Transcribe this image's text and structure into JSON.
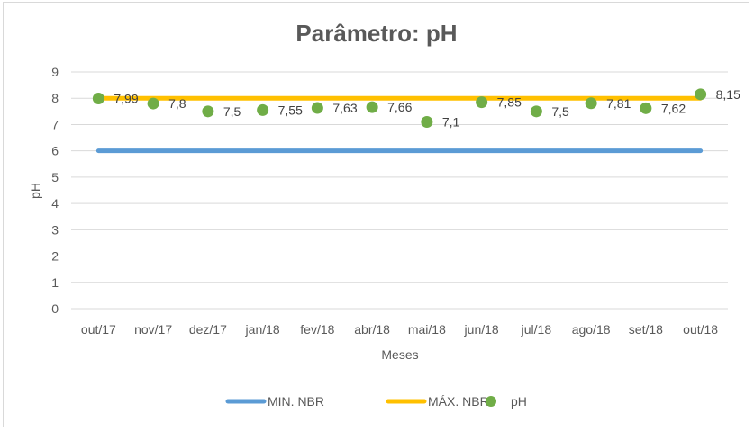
{
  "chart_data": {
    "type": "line",
    "title": "Parâmetro: pH",
    "xlabel": "Meses",
    "ylabel": "pH",
    "ylim": [
      0,
      9
    ],
    "yticks": [
      "0",
      "1",
      "2",
      "3",
      "4",
      "5",
      "6",
      "7",
      "8",
      "9"
    ],
    "categories": [
      "out/17",
      "nov/17",
      "dez/17",
      "jan/18",
      "fev/18",
      "abr/18",
      "mai/18",
      "jun/18",
      "jul/18",
      "ago/18",
      "set/18",
      "out/18"
    ],
    "series": [
      {
        "name": "MIN. NBR",
        "kind": "line",
        "color": "#5b9bd5",
        "values": [
          6,
          6,
          6,
          6,
          6,
          6,
          6,
          6,
          6,
          6,
          6,
          6
        ]
      },
      {
        "name": "MÁX. NBR",
        "kind": "line",
        "color": "#ffc000",
        "values": [
          8,
          8,
          8,
          8,
          8,
          8,
          8,
          8,
          8,
          8,
          8,
          8
        ]
      },
      {
        "name": "pH",
        "kind": "marker",
        "color": "#70ad47",
        "values": [
          7.99,
          7.8,
          7.5,
          7.55,
          7.63,
          7.66,
          7.1,
          7.85,
          7.5,
          7.81,
          7.62,
          8.15
        ],
        "labels": [
          "7,99",
          "7,8",
          "7,5",
          "7,55",
          "7,63",
          "7,66",
          "7,1",
          "7,85",
          "7,5",
          "7,81",
          "7,62",
          "8,15"
        ]
      }
    ],
    "grid": true,
    "legend": "bottom"
  }
}
